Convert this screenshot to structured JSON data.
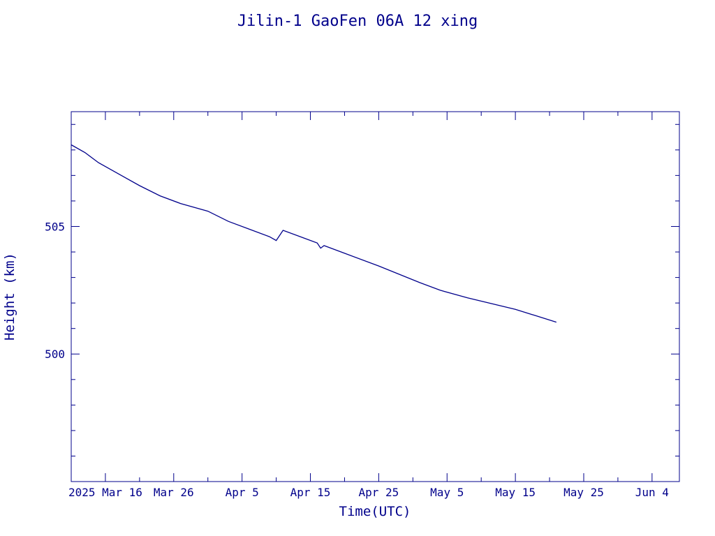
{
  "chart_data": {
    "type": "line",
    "title": "Jilin-1 GaoFen 06A 12 xing",
    "xlabel": "Time(UTC)",
    "ylabel": "Height (km)",
    "color": "#00008b",
    "grid": false,
    "legend": "none",
    "xlim": [
      "2025-03-11",
      "2025-06-08"
    ],
    "ylim": [
      495,
      509.5
    ],
    "x_ticks": [
      {
        "date": "2025-03-16",
        "label": "2025 Mar 16"
      },
      {
        "date": "2025-03-26",
        "label": "Mar 26"
      },
      {
        "date": "2025-04-05",
        "label": "Apr  5"
      },
      {
        "date": "2025-04-15",
        "label": "Apr 15"
      },
      {
        "date": "2025-04-25",
        "label": "Apr 25"
      },
      {
        "date": "2025-05-05",
        "label": "May  5"
      },
      {
        "date": "2025-05-15",
        "label": "May 15"
      },
      {
        "date": "2025-05-25",
        "label": "May 25"
      },
      {
        "date": "2025-06-04",
        "label": "Jun  4"
      }
    ],
    "y_ticks": [
      {
        "value": 500,
        "label": "500"
      },
      {
        "value": 505,
        "label": "505"
      }
    ],
    "series": [
      {
        "x": [
          "2025-03-11",
          "2025-03-13",
          "2025-03-15",
          "2025-03-17",
          "2025-03-21",
          "2025-03-24",
          "2025-03-27",
          "2025-03-31",
          "2025-04-03",
          "2025-04-06",
          "2025-04-09",
          "2025-04-10",
          "2025-04-11",
          "2025-04-14",
          "2025-04-16",
          "2025-04-16 12:00",
          "2025-04-17",
          "2025-04-20",
          "2025-04-25",
          "2025-05-01",
          "2025-05-04",
          "2025-05-08",
          "2025-05-15",
          "2025-05-18",
          "2025-05-21"
        ],
        "y": [
          508.2,
          507.9,
          507.5,
          507.2,
          506.6,
          506.2,
          505.9,
          505.6,
          505.2,
          504.9,
          504.6,
          504.45,
          504.85,
          504.55,
          504.35,
          504.15,
          504.25,
          503.95,
          503.45,
          502.8,
          502.5,
          502.2,
          501.75,
          501.5,
          501.25
        ]
      }
    ]
  }
}
